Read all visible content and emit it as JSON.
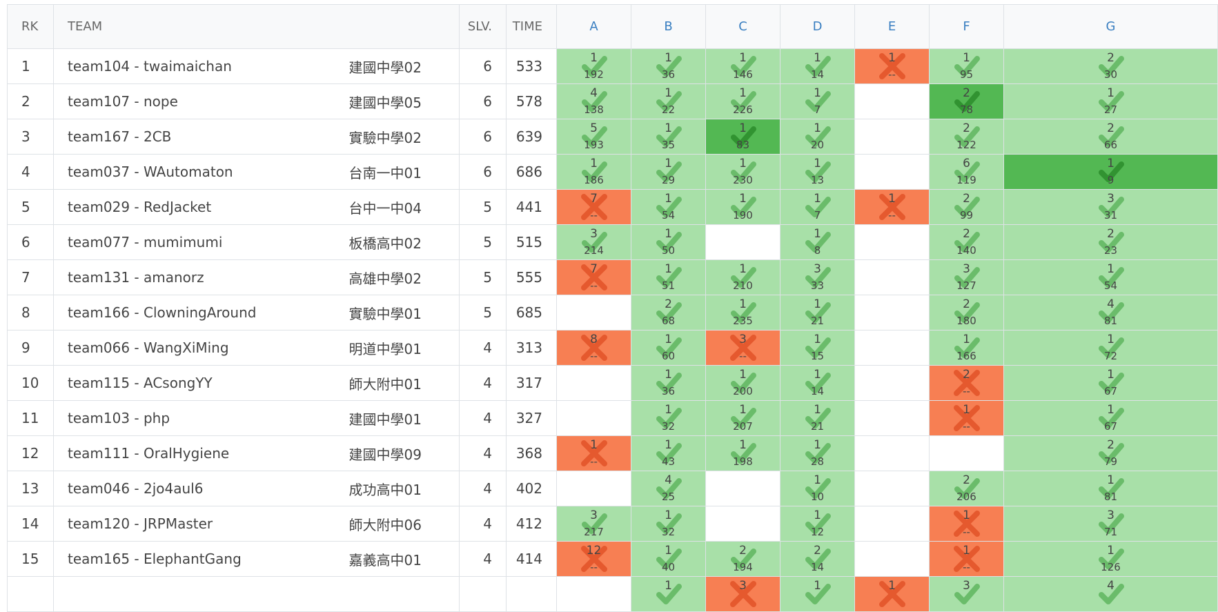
{
  "colors": {
    "accepted": "#a8e0a8",
    "first_blood": "#53b853",
    "rejected": "#f77f53",
    "problem_header": "#3a7fc1"
  },
  "headers": {
    "rank": "RK",
    "team": "TEAM",
    "solved": "SLV.",
    "time": "TIME",
    "problems": [
      "A",
      "B",
      "C",
      "D",
      "E",
      "F",
      "G"
    ]
  },
  "rows": [
    {
      "rank": "1",
      "team": "team104 - twaimaichan",
      "school": "建國中學02",
      "solved": "6",
      "time": "533",
      "cells": [
        {
          "s": "ac",
          "n": "1",
          "t": "192"
        },
        {
          "s": "ac",
          "n": "1",
          "t": "36"
        },
        {
          "s": "ac",
          "n": "1",
          "t": "146"
        },
        {
          "s": "ac",
          "n": "1",
          "t": "14"
        },
        {
          "s": "wa",
          "n": "1",
          "t": "--"
        },
        {
          "s": "ac",
          "n": "1",
          "t": "95"
        },
        {
          "s": "ac",
          "n": "2",
          "t": "30"
        }
      ]
    },
    {
      "rank": "2",
      "team": "team107 - nope",
      "school": "建國中學05",
      "solved": "6",
      "time": "578",
      "cells": [
        {
          "s": "ac",
          "n": "4",
          "t": "138"
        },
        {
          "s": "ac",
          "n": "1",
          "t": "22"
        },
        {
          "s": "ac",
          "n": "1",
          "t": "226"
        },
        {
          "s": "ac",
          "n": "1",
          "t": "7"
        },
        {
          "s": "none"
        },
        {
          "s": "fb",
          "n": "2",
          "t": "78"
        },
        {
          "s": "ac",
          "n": "1",
          "t": "27"
        }
      ]
    },
    {
      "rank": "3",
      "team": "team167 - 2CB",
      "school": "實驗中學02",
      "solved": "6",
      "time": "639",
      "cells": [
        {
          "s": "ac",
          "n": "5",
          "t": "193"
        },
        {
          "s": "ac",
          "n": "1",
          "t": "35"
        },
        {
          "s": "fb",
          "n": "1",
          "t": "83"
        },
        {
          "s": "ac",
          "n": "1",
          "t": "20"
        },
        {
          "s": "none"
        },
        {
          "s": "ac",
          "n": "2",
          "t": "122"
        },
        {
          "s": "ac",
          "n": "2",
          "t": "66"
        }
      ]
    },
    {
      "rank": "4",
      "team": "team037 - WAutomaton",
      "school": "台南一中01",
      "solved": "6",
      "time": "686",
      "cells": [
        {
          "s": "ac",
          "n": "1",
          "t": "186"
        },
        {
          "s": "ac",
          "n": "1",
          "t": "29"
        },
        {
          "s": "ac",
          "n": "1",
          "t": "230"
        },
        {
          "s": "ac",
          "n": "1",
          "t": "13"
        },
        {
          "s": "none"
        },
        {
          "s": "ac",
          "n": "6",
          "t": "119"
        },
        {
          "s": "fb",
          "n": "1",
          "t": "9"
        }
      ]
    },
    {
      "rank": "5",
      "team": "team029 - RedJacket",
      "school": "台中一中04",
      "solved": "5",
      "time": "441",
      "cells": [
        {
          "s": "wa",
          "n": "7",
          "t": "--"
        },
        {
          "s": "ac",
          "n": "1",
          "t": "54"
        },
        {
          "s": "ac",
          "n": "1",
          "t": "190"
        },
        {
          "s": "ac",
          "n": "1",
          "t": "7"
        },
        {
          "s": "wa",
          "n": "1",
          "t": "--"
        },
        {
          "s": "ac",
          "n": "2",
          "t": "99"
        },
        {
          "s": "ac",
          "n": "3",
          "t": "31"
        }
      ]
    },
    {
      "rank": "6",
      "team": "team077 - mumimumi",
      "school": "板橋高中02",
      "solved": "5",
      "time": "515",
      "cells": [
        {
          "s": "ac",
          "n": "3",
          "t": "214"
        },
        {
          "s": "ac",
          "n": "1",
          "t": "50"
        },
        {
          "s": "none"
        },
        {
          "s": "ac",
          "n": "1",
          "t": "8"
        },
        {
          "s": "none"
        },
        {
          "s": "ac",
          "n": "2",
          "t": "140"
        },
        {
          "s": "ac",
          "n": "2",
          "t": "23"
        }
      ]
    },
    {
      "rank": "7",
      "team": "team131 - amanorz",
      "school": "高雄中學02",
      "solved": "5",
      "time": "555",
      "cells": [
        {
          "s": "wa",
          "n": "7",
          "t": "--"
        },
        {
          "s": "ac",
          "n": "1",
          "t": "51"
        },
        {
          "s": "ac",
          "n": "1",
          "t": "210"
        },
        {
          "s": "ac",
          "n": "3",
          "t": "33"
        },
        {
          "s": "none"
        },
        {
          "s": "ac",
          "n": "3",
          "t": "127"
        },
        {
          "s": "ac",
          "n": "1",
          "t": "54"
        }
      ]
    },
    {
      "rank": "8",
      "team": "team166 - ClowningAround",
      "school": "實驗中學01",
      "solved": "5",
      "time": "685",
      "cells": [
        {
          "s": "none"
        },
        {
          "s": "ac",
          "n": "2",
          "t": "68"
        },
        {
          "s": "ac",
          "n": "1",
          "t": "235"
        },
        {
          "s": "ac",
          "n": "1",
          "t": "21"
        },
        {
          "s": "none"
        },
        {
          "s": "ac",
          "n": "2",
          "t": "180"
        },
        {
          "s": "ac",
          "n": "4",
          "t": "81"
        }
      ]
    },
    {
      "rank": "9",
      "team": "team066 - WangXiMing",
      "school": "明道中學01",
      "solved": "4",
      "time": "313",
      "cells": [
        {
          "s": "wa",
          "n": "8",
          "t": "--"
        },
        {
          "s": "ac",
          "n": "1",
          "t": "60"
        },
        {
          "s": "wa",
          "n": "3",
          "t": "--"
        },
        {
          "s": "ac",
          "n": "1",
          "t": "15"
        },
        {
          "s": "none"
        },
        {
          "s": "ac",
          "n": "1",
          "t": "166"
        },
        {
          "s": "ac",
          "n": "1",
          "t": "72"
        }
      ]
    },
    {
      "rank": "10",
      "team": "team115 - ACsongYY",
      "school": "師大附中01",
      "solved": "4",
      "time": "317",
      "cells": [
        {
          "s": "none"
        },
        {
          "s": "ac",
          "n": "1",
          "t": "36"
        },
        {
          "s": "ac",
          "n": "1",
          "t": "200"
        },
        {
          "s": "ac",
          "n": "1",
          "t": "14"
        },
        {
          "s": "none"
        },
        {
          "s": "wa",
          "n": "2",
          "t": "--"
        },
        {
          "s": "ac",
          "n": "1",
          "t": "67"
        }
      ]
    },
    {
      "rank": "11",
      "team": "team103 - php",
      "school": "建國中學01",
      "solved": "4",
      "time": "327",
      "cells": [
        {
          "s": "none"
        },
        {
          "s": "ac",
          "n": "1",
          "t": "32"
        },
        {
          "s": "ac",
          "n": "1",
          "t": "207"
        },
        {
          "s": "ac",
          "n": "1",
          "t": "21"
        },
        {
          "s": "none"
        },
        {
          "s": "wa",
          "n": "1",
          "t": "--"
        },
        {
          "s": "ac",
          "n": "1",
          "t": "67"
        }
      ]
    },
    {
      "rank": "12",
      "team": "team111 - OralHygiene",
      "school": "建國中學09",
      "solved": "4",
      "time": "368",
      "cells": [
        {
          "s": "wa",
          "n": "1",
          "t": "--"
        },
        {
          "s": "ac",
          "n": "1",
          "t": "43"
        },
        {
          "s": "ac",
          "n": "1",
          "t": "198"
        },
        {
          "s": "ac",
          "n": "1",
          "t": "28"
        },
        {
          "s": "none"
        },
        {
          "s": "none"
        },
        {
          "s": "ac",
          "n": "2",
          "t": "79"
        }
      ]
    },
    {
      "rank": "13",
      "team": "team046 - 2jo4aul6",
      "school": "成功高中01",
      "solved": "4",
      "time": "402",
      "cells": [
        {
          "s": "none"
        },
        {
          "s": "ac",
          "n": "4",
          "t": "25"
        },
        {
          "s": "none"
        },
        {
          "s": "ac",
          "n": "1",
          "t": "10"
        },
        {
          "s": "none"
        },
        {
          "s": "ac",
          "n": "2",
          "t": "206"
        },
        {
          "s": "ac",
          "n": "1",
          "t": "81"
        }
      ]
    },
    {
      "rank": "14",
      "team": "team120 - JRPMaster",
      "school": "師大附中06",
      "solved": "4",
      "time": "412",
      "cells": [
        {
          "s": "ac",
          "n": "3",
          "t": "217"
        },
        {
          "s": "ac",
          "n": "1",
          "t": "32"
        },
        {
          "s": "none"
        },
        {
          "s": "ac",
          "n": "1",
          "t": "12"
        },
        {
          "s": "none"
        },
        {
          "s": "wa",
          "n": "1",
          "t": "--"
        },
        {
          "s": "ac",
          "n": "3",
          "t": "71"
        }
      ]
    },
    {
      "rank": "15",
      "team": "team165 - ElephantGang",
      "school": "嘉義高中01",
      "solved": "4",
      "time": "414",
      "cells": [
        {
          "s": "wa",
          "n": "12",
          "t": "--"
        },
        {
          "s": "ac",
          "n": "1",
          "t": "40"
        },
        {
          "s": "ac",
          "n": "2",
          "t": "194"
        },
        {
          "s": "ac",
          "n": "2",
          "t": "14"
        },
        {
          "s": "none"
        },
        {
          "s": "wa",
          "n": "1",
          "t": "--"
        },
        {
          "s": "ac",
          "n": "1",
          "t": "126"
        }
      ]
    },
    {
      "rank": "",
      "team": "",
      "school": "",
      "solved": "",
      "time": "",
      "cells": [
        {
          "s": "none"
        },
        {
          "s": "ac",
          "n": "1",
          "t": ""
        },
        {
          "s": "wa",
          "n": "3",
          "t": ""
        },
        {
          "s": "ac",
          "n": "1",
          "t": ""
        },
        {
          "s": "wa",
          "n": "1",
          "t": ""
        },
        {
          "s": "ac",
          "n": "3",
          "t": ""
        },
        {
          "s": "ac",
          "n": "4",
          "t": ""
        }
      ]
    }
  ]
}
